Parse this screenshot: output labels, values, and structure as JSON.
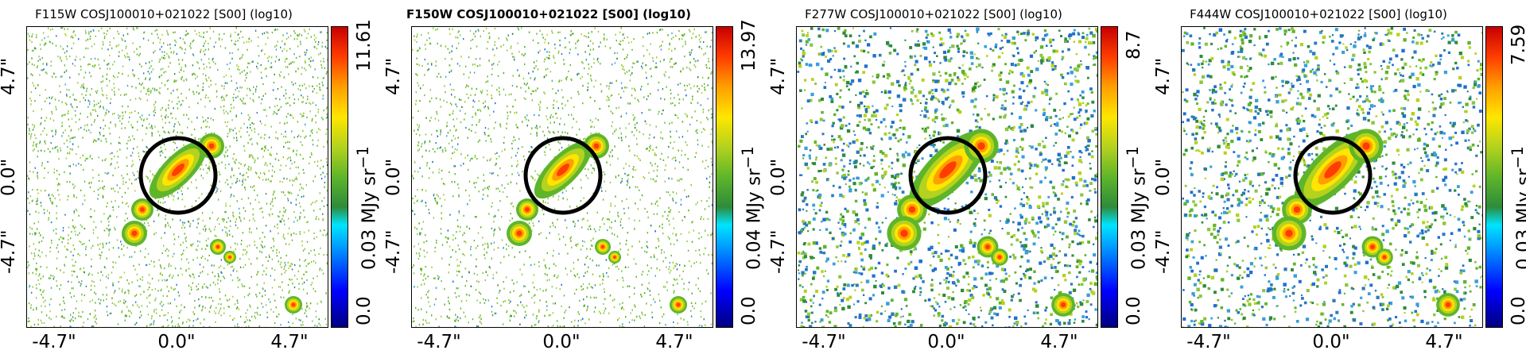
{
  "panels": [
    {
      "title": "F115W COSJ100010+021022 [S00] (log10)",
      "title_bold": false,
      "colorbar": {
        "max": "11.61",
        "mid": "0.03",
        "min": "0.0",
        "unit": "MJy sr"
      },
      "x_ticks": [
        "-4.7\"",
        "0.0\"",
        "4.7\""
      ],
      "y_ticks": [
        "-4.7\"",
        "0.0\"",
        "4.7\""
      ],
      "noise_density": 0.62,
      "noise_color": "#5aa832"
    },
    {
      "title": "F150W COSJ100010+021022 [S00] (log10)",
      "title_bold": true,
      "colorbar": {
        "max": "13.97",
        "mid": "0.04",
        "min": "0.0",
        "unit": "MJy sr"
      },
      "x_ticks": [
        "-4.7\"",
        "0.0\"",
        "4.7\""
      ],
      "y_ticks": [
        "-4.7\"",
        "0.0\"",
        "4.7\""
      ],
      "noise_density": 0.6,
      "noise_color": "#5aa832"
    },
    {
      "title": "F277W COSJ100010+021022 [S00] (log10)",
      "title_bold": false,
      "colorbar": {
        "max": "8.7",
        "mid": "0.03",
        "min": "0.0",
        "unit": "MJy sr"
      },
      "x_ticks": [
        "-4.7\"",
        "0.0\"",
        "4.7\""
      ],
      "y_ticks": [
        "-4.7\"",
        "0.0\"",
        "4.7\""
      ],
      "noise_density": 0.4,
      "noise_color": "#2f8fd0"
    },
    {
      "title": "F444W COSJ100010+021022 [S00] (log10)",
      "title_bold": false,
      "colorbar": {
        "max": "7.59",
        "mid": "0.03",
        "min": "0.0",
        "unit": "MJy sr"
      },
      "x_ticks": [
        "-4.7\"",
        "0.0\"",
        "4.7\""
      ],
      "y_ticks": [
        "-4.7\"",
        "0.0\"",
        "4.7\""
      ],
      "noise_density": 0.35,
      "noise_color": "#2f8fd0"
    }
  ]
}
